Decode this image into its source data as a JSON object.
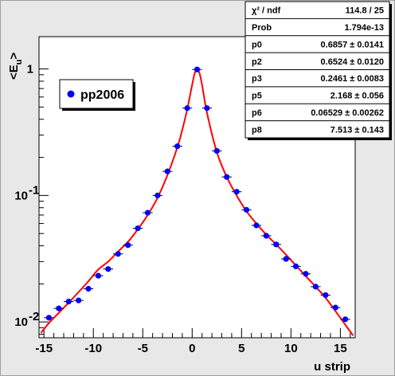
{
  "chart_data": {
    "type": "scatter",
    "title": "",
    "xlabel": "u strip",
    "ylabel": "<E_u>",
    "y_scale": "log",
    "xlim": [
      -15.5,
      16.5
    ],
    "ylim": [
      0.0075,
      1.8
    ],
    "grid": false,
    "x_ticks": [
      -15,
      -10,
      -5,
      0,
      5,
      10,
      15
    ],
    "x_tick_labels": [
      "-15",
      "-10",
      "-5",
      "0",
      "5",
      "10",
      "15"
    ],
    "y_ticks": [
      {
        "value": 0.01,
        "base": "10",
        "exp": "-2"
      },
      {
        "value": 0.1,
        "base": "10",
        "exp": "-1"
      },
      {
        "value": 1,
        "base": "1",
        "exp": ""
      }
    ],
    "legend": {
      "placement": "top-left",
      "entries": [
        "pp2006"
      ]
    },
    "series": [
      {
        "name": "pp2006",
        "color": "#0000ff",
        "marker": "circle",
        "x": [
          -14.5,
          -13.5,
          -12.5,
          -11.5,
          -10.5,
          -9.5,
          -8.5,
          -7.5,
          -6.5,
          -5.5,
          -4.5,
          -3.5,
          -2.5,
          -1.5,
          -0.5,
          0.5,
          1.5,
          2.5,
          3.5,
          4.5,
          5.5,
          6.5,
          7.5,
          8.5,
          9.5,
          10.5,
          11.5,
          12.5,
          13.5,
          14.5,
          15.5
        ],
        "y": [
          0.0108,
          0.0128,
          0.0145,
          0.0148,
          0.0183,
          0.0232,
          0.0262,
          0.0345,
          0.0405,
          0.055,
          0.073,
          0.1,
          0.155,
          0.245,
          0.49,
          0.99,
          0.49,
          0.225,
          0.14,
          0.107,
          0.077,
          0.058,
          0.048,
          0.041,
          0.0315,
          0.0275,
          0.024,
          0.019,
          0.0163,
          0.013,
          0.0105
        ]
      },
      {
        "name": "",
        "type": "line",
        "color": "#ff0000",
        "x": [
          -15.3,
          -14.5,
          -13.5,
          -12.5,
          -11.5,
          -10.5,
          -9.5,
          -8.5,
          -7.5,
          -6.5,
          -5.5,
          -4.5,
          -3.5,
          -2.5,
          -1.5,
          -1.0,
          -0.5,
          0.0,
          0.25,
          0.5,
          0.75,
          1.0,
          1.5,
          2.5,
          3.5,
          4.5,
          5.5,
          6.5,
          7.5,
          8.5,
          9.5,
          10.5,
          11.5,
          12.5,
          13.5,
          14.5,
          15.5,
          16.3
        ],
        "y": [
          0.0082,
          0.0098,
          0.0118,
          0.0142,
          0.0172,
          0.021,
          0.026,
          0.03,
          0.036,
          0.043,
          0.054,
          0.07,
          0.096,
          0.145,
          0.24,
          0.33,
          0.48,
          0.75,
          0.92,
          0.99,
          0.92,
          0.75,
          0.45,
          0.22,
          0.14,
          0.1,
          0.075,
          0.06,
          0.049,
          0.041,
          0.034,
          0.028,
          0.023,
          0.019,
          0.0155,
          0.0122,
          0.0095,
          0.0078
        ]
      }
    ]
  },
  "stats_box": {
    "rows": [
      {
        "label": "χ² / ndf",
        "value": "114.8 / 25"
      },
      {
        "label": "Prob",
        "value": "1.794e-13"
      },
      {
        "label": "p0",
        "value": "0.6857 ± 0.0141"
      },
      {
        "label": "p2",
        "value": "0.6524 ± 0.0120"
      },
      {
        "label": "p3",
        "value": "0.2461 ± 0.0083"
      },
      {
        "label": "p5",
        "value": "2.168 ± 0.056"
      },
      {
        "label": "p6",
        "value": "0.06529 ± 0.00262"
      },
      {
        "label": "p8",
        "value": "7.513 ± 0.143"
      }
    ]
  }
}
